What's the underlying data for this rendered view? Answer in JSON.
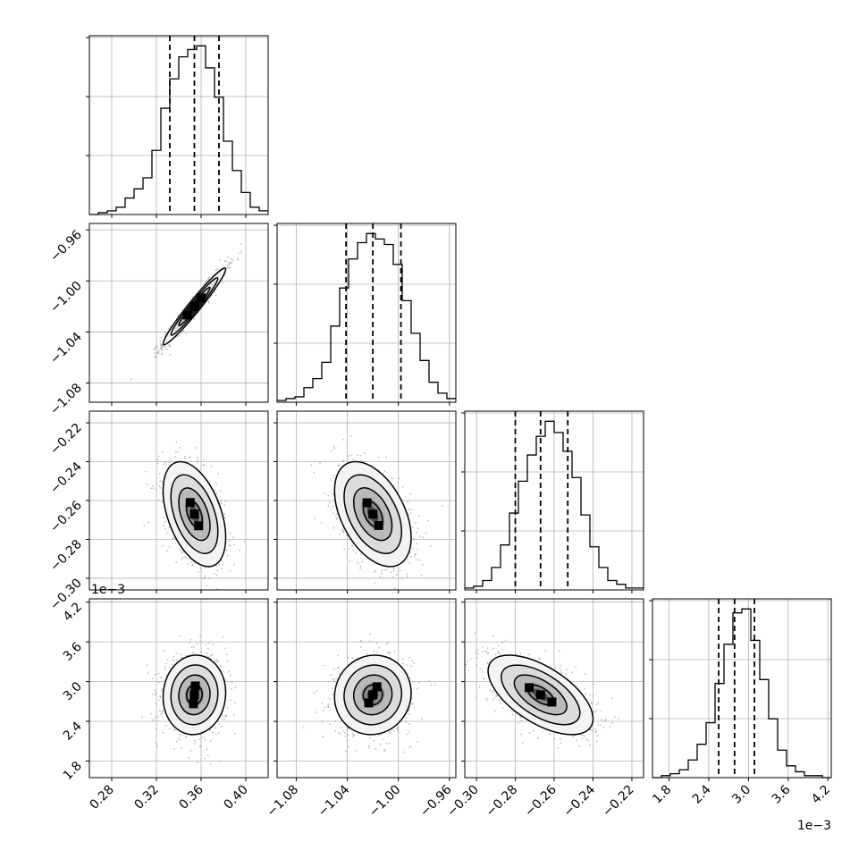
{
  "chart_data": {
    "type": "corner",
    "grid": true,
    "parameters": [
      {
        "xticks": [
          "0.28",
          "0.32",
          "0.36",
          "0.40"
        ],
        "yticks": [],
        "range": [
          0.26,
          0.42
        ],
        "offset_label": ""
      },
      {
        "xticks": [
          "−1.08",
          "−1.04",
          "−1.00",
          "−0.96"
        ],
        "yticks": [
          "−0.96",
          "−1.00",
          "−1.04",
          "−1.08"
        ],
        "range": [
          -1.095,
          -0.955
        ],
        "offset_label": ""
      },
      {
        "xticks": [
          "−0.30",
          "−0.28",
          "−0.26",
          "−0.24",
          "−0.22"
        ],
        "yticks": [
          "−0.22",
          "−0.24",
          "−0.26",
          "−0.28",
          "−0.30"
        ],
        "range": [
          -0.306,
          -0.214
        ],
        "offset_label": ""
      },
      {
        "xticks": [
          "1.8",
          "2.4",
          "3.0",
          "3.6",
          "4.2"
        ],
        "yticks": [
          "1.8",
          "2.4",
          "3.0",
          "3.6",
          "4.2"
        ],
        "range": [
          1.55,
          4.25
        ],
        "offset_label": "1e−3"
      }
    ],
    "marginals": [
      {
        "param": 0,
        "quantiles": [
          0.332,
          0.354,
          0.376
        ],
        "bin_edges": [
          0.26,
          0.268,
          0.276,
          0.284,
          0.292,
          0.3,
          0.308,
          0.316,
          0.324,
          0.332,
          0.34,
          0.348,
          0.356,
          0.364,
          0.372,
          0.38,
          0.388,
          0.396,
          0.404,
          0.412,
          0.42
        ],
        "counts": [
          0,
          1,
          2,
          4,
          9,
          14,
          20,
          35,
          58,
          74,
          86,
          90,
          92,
          80,
          64,
          40,
          24,
          12,
          4,
          2
        ]
      },
      {
        "param": 1,
        "quantiles": [
          -1.041,
          -1.02,
          -0.998
        ],
        "bin_edges": [
          -1.095,
          -1.088,
          -1.081,
          -1.074,
          -1.067,
          -1.06,
          -1.053,
          -1.046,
          -1.039,
          -1.032,
          -1.025,
          -1.018,
          -1.011,
          -1.004,
          -0.997,
          -0.99,
          -0.983,
          -0.976,
          -0.969,
          -0.962,
          -0.955
        ],
        "counts": [
          1,
          2,
          3,
          8,
          13,
          22,
          42,
          63,
          79,
          88,
          93,
          90,
          87,
          76,
          56,
          38,
          23,
          11,
          5,
          2
        ]
      },
      {
        "param": 2,
        "quantiles": [
          -0.28,
          -0.267,
          -0.253
        ],
        "bin_edges": [
          -0.306,
          -0.3014,
          -0.2968,
          -0.2922,
          -0.2876,
          -0.283,
          -0.2784,
          -0.2738,
          -0.2692,
          -0.2646,
          -0.26,
          -0.2554,
          -0.2508,
          -0.2462,
          -0.2416,
          -0.237,
          -0.2324,
          -0.2278,
          -0.2232,
          -0.2186,
          -0.214
        ],
        "counts": [
          1,
          2,
          5,
          12,
          24,
          41,
          58,
          72,
          82,
          90,
          84,
          74,
          60,
          40,
          23,
          12,
          5,
          3,
          1,
          1
        ]
      },
      {
        "param": 3,
        "quantiles": [
          2.55,
          2.79,
          3.09
        ],
        "bin_edges": [
          1.55,
          1.685,
          1.82,
          1.955,
          2.09,
          2.225,
          2.36,
          2.495,
          2.63,
          2.765,
          2.9,
          3.035,
          3.17,
          3.305,
          3.44,
          3.575,
          3.71,
          3.845,
          3.98,
          4.115,
          4.25
        ],
        "counts": [
          0,
          1,
          2,
          4,
          9,
          17,
          28,
          48,
          68,
          84,
          86,
          70,
          50,
          30,
          14,
          6,
          3,
          1,
          1,
          0
        ]
      }
    ],
    "joint": [
      {
        "x": 0,
        "y": 1,
        "mean": [
          0.354,
          -1.02
        ],
        "sd": [
          0.014,
          0.015
        ],
        "corr": 0.97
      },
      {
        "x": 0,
        "y": 2,
        "mean": [
          0.354,
          -0.267
        ],
        "sd": [
          0.014,
          0.0135
        ],
        "corr": -0.45
      },
      {
        "x": 1,
        "y": 2,
        "mean": [
          -1.02,
          -0.267
        ],
        "sd": [
          0.015,
          0.0135
        ],
        "corr": -0.45
      },
      {
        "x": 0,
        "y": 3,
        "mean": [
          0.354,
          2.8
        ],
        "sd": [
          0.014,
          0.3
        ],
        "corr": 0.05
      },
      {
        "x": 1,
        "y": 3,
        "mean": [
          -1.02,
          2.8
        ],
        "sd": [
          0.015,
          0.3
        ],
        "corr": 0.05
      },
      {
        "x": 2,
        "y": 3,
        "mean": [
          -0.267,
          2.8
        ],
        "sd": [
          0.0135,
          0.3
        ],
        "corr": -0.6
      }
    ],
    "contour_levels_sigma": [
      0.5,
      1.0,
      1.5,
      2.0
    ],
    "quantile_line_style": "dashed"
  }
}
